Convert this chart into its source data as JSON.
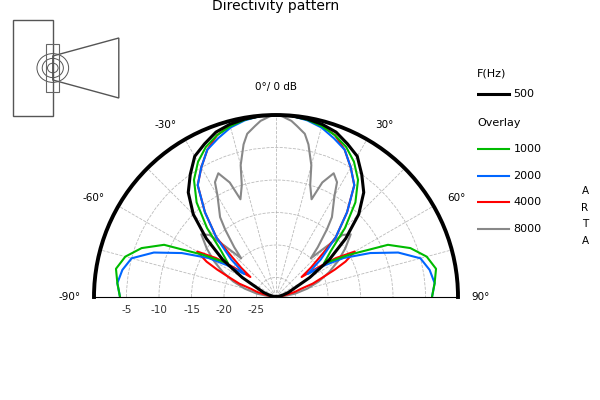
{
  "title": "Directivity pattern",
  "r_ticks": [
    0,
    -5,
    -10,
    -15,
    -20,
    -25
  ],
  "r_max": 0,
  "r_min": -28,
  "legend_title1": "F(Hz)",
  "legend_title2": "Overlay",
  "legend_entries": [
    {
      "label": "500",
      "color": "#000000",
      "lw": 2.2
    },
    {
      "label": "1000",
      "color": "#00bb00",
      "lw": 1.5
    },
    {
      "label": "2000",
      "color": "#0066ff",
      "lw": 1.5
    },
    {
      "label": "4000",
      "color": "#ff0000",
      "lw": 1.5
    },
    {
      "label": "8000",
      "color": "#888888",
      "lw": 1.5
    }
  ],
  "arta_label": "A\nR\nT\nA",
  "background_color": "#ffffff",
  "grid_color": "#aaaaaa",
  "grid_linestyle": "--",
  "series_order": [
    "8000",
    "4000",
    "2000",
    "1000",
    "500"
  ],
  "series": {
    "500": {
      "angles": [
        -90,
        -85,
        -80,
        -75,
        -70,
        -65,
        -60,
        -55,
        -50,
        -45,
        -40,
        -35,
        -30,
        -25,
        -20,
        -15,
        -10,
        -5,
        0,
        5,
        10,
        15,
        20,
        25,
        30,
        35,
        40,
        45,
        50,
        55,
        60,
        65,
        70,
        75,
        80,
        85,
        90
      ],
      "values": [
        -28,
        -28,
        -28,
        -27,
        -26,
        -25,
        -22,
        -18,
        -14,
        -10,
        -7,
        -5,
        -3,
        -2,
        -1,
        -0.5,
        -0.2,
        -0.05,
        0,
        -0.05,
        -0.2,
        -0.5,
        -1,
        -2,
        -3,
        -5,
        -7,
        -10,
        -14,
        -18,
        -22,
        -25,
        -26,
        -27,
        -28,
        -28,
        -28
      ]
    },
    "1000": {
      "angles": [
        -90,
        -85,
        -80,
        -75,
        -70,
        -65,
        -63,
        -60,
        -55,
        -50,
        -45,
        -40,
        -35,
        -30,
        -25,
        -20,
        -15,
        -10,
        -5,
        0,
        5,
        10,
        15,
        20,
        25,
        30,
        35,
        40,
        45,
        50,
        55,
        60,
        63,
        65,
        70,
        75,
        80,
        85,
        90
      ],
      "values": [
        -4,
        -3.5,
        -3,
        -4,
        -6,
        -9,
        -12,
        -15,
        -19,
        -17,
        -13,
        -9,
        -6,
        -4,
        -2.5,
        -1.5,
        -0.8,
        -0.3,
        -0.05,
        0,
        -0.05,
        -0.3,
        -0.8,
        -1.5,
        -2.5,
        -4,
        -6,
        -9,
        -13,
        -17,
        -19,
        -15,
        -12,
        -9,
        -6,
        -4,
        -3,
        -3.5,
        -4
      ]
    },
    "2000": {
      "angles": [
        -90,
        -85,
        -80,
        -75,
        -70,
        -65,
        -60,
        -57,
        -54,
        -50,
        -45,
        -40,
        -35,
        -30,
        -25,
        -20,
        -15,
        -10,
        -5,
        0,
        5,
        10,
        15,
        20,
        25,
        30,
        35,
        40,
        45,
        50,
        54,
        57,
        60,
        65,
        70,
        75,
        80,
        85,
        90
      ],
      "values": [
        -4,
        -3.5,
        -4,
        -5,
        -8,
        -12,
        -16,
        -19,
        -22,
        -19,
        -15,
        -11,
        -7,
        -5,
        -3,
        -2,
        -1,
        -0.4,
        -0.05,
        0,
        -0.05,
        -0.4,
        -1,
        -2,
        -3,
        -5,
        -7,
        -11,
        -15,
        -19,
        -22,
        -19,
        -16,
        -12,
        -8,
        -5,
        -4,
        -3.5,
        -4
      ]
    },
    "4000": {
      "angles": [
        -90,
        -88,
        -85,
        -82,
        -80,
        -77,
        -75,
        -72,
        -70,
        -67,
        -65,
        -63,
        -60,
        -57,
        -55,
        -52,
        -50,
        -47,
        -45,
        -40,
        -35,
        -30,
        -25,
        -20,
        -15,
        -10,
        -5,
        0,
        5,
        10,
        15,
        20,
        25,
        30,
        35,
        40,
        45,
        47,
        50,
        52,
        55,
        57,
        60,
        63,
        65,
        67,
        70,
        72,
        75,
        77,
        80,
        82,
        85,
        88,
        90
      ],
      "values": [
        -28,
        -28,
        -28,
        -28,
        -27,
        -26,
        -25,
        -24,
        -22,
        -20,
        -18,
        -16,
        -14,
        -17,
        -20,
        -23,
        -21,
        -18,
        -15,
        -11,
        -7,
        -5,
        -3,
        -1.5,
        -0.7,
        -0.25,
        -0.05,
        0,
        -0.05,
        -0.25,
        -0.7,
        -1.5,
        -3,
        -5,
        -7,
        -11,
        -15,
        -18,
        -21,
        -23,
        -20,
        -17,
        -14,
        -16,
        -18,
        -20,
        -22,
        -24,
        -25,
        -26,
        -27,
        -28,
        -28,
        -28,
        -28
      ]
    },
    "8000": {
      "angles": [
        -90,
        -85,
        -80,
        -75,
        -70,
        -65,
        -60,
        -55,
        -50,
        -47,
        -45,
        -42,
        -40,
        -37,
        -35,
        -30,
        -28,
        -25,
        -22,
        -20,
        -17,
        -15,
        -12,
        -10,
        -7,
        -5,
        -2,
        0,
        2,
        5,
        7,
        10,
        12,
        15,
        17,
        20,
        22,
        25,
        28,
        30,
        35,
        37,
        40,
        42,
        45,
        47,
        50,
        55,
        60,
        65,
        70,
        75,
        80,
        85,
        90
      ],
      "values": [
        -28,
        -27,
        -25,
        -23,
        -21,
        -19,
        -17,
        -15,
        -13,
        -14,
        -17,
        -20,
        -18,
        -15,
        -13,
        -10,
        -8,
        -7,
        -9,
        -12,
        -10,
        -7,
        -4,
        -2.5,
        -1.5,
        -0.8,
        -0.2,
        0,
        -0.2,
        -0.8,
        -1.5,
        -2.5,
        -4,
        -7,
        -10,
        -12,
        -9,
        -7,
        -8,
        -10,
        -13,
        -15,
        -18,
        -20,
        -17,
        -14,
        -13,
        -15,
        -17,
        -19,
        -21,
        -23,
        -25,
        -27,
        -28
      ]
    }
  }
}
